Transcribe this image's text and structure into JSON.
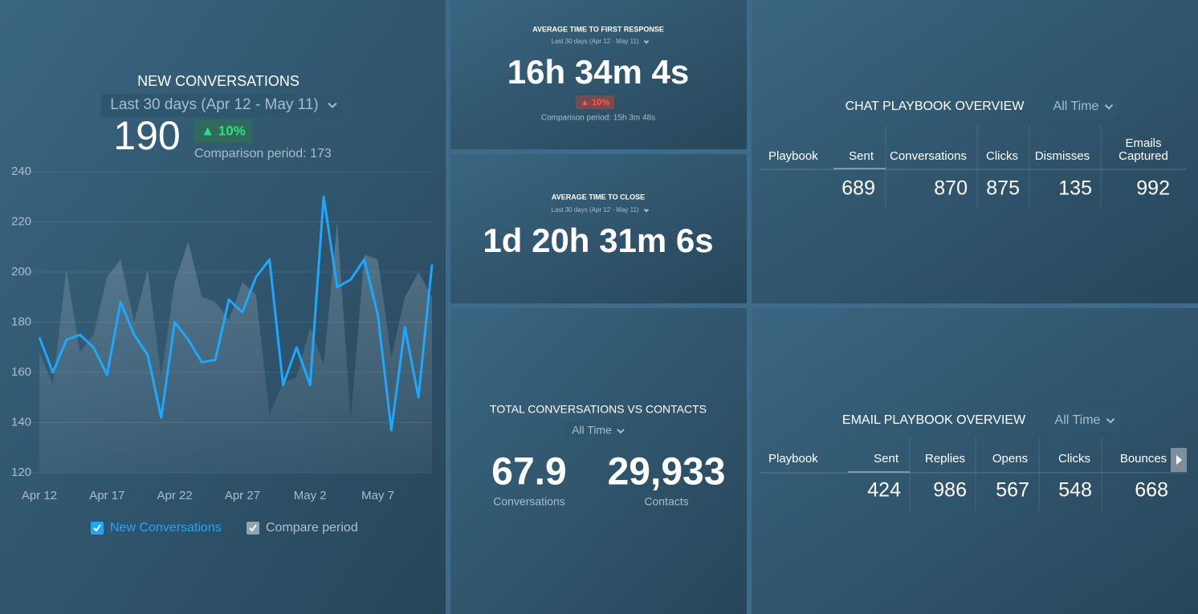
{
  "chart_data": {
    "type": "line",
    "title": "NEW CONVERSATIONS",
    "categories": [
      "Apr 12",
      null,
      null,
      null,
      null,
      "Apr 17",
      null,
      null,
      null,
      null,
      "Apr 22",
      null,
      null,
      null,
      null,
      "Apr 27",
      null,
      null,
      null,
      null,
      "May 2",
      null,
      null,
      null,
      null,
      "May 7",
      null,
      null,
      null,
      null
    ],
    "series": [
      {
        "name": "New Conversations",
        "color": "#1ea7fd",
        "style": "line",
        "values": [
          174,
          160,
          173,
          175,
          170,
          159,
          188,
          175,
          167,
          142,
          180,
          173,
          164,
          165,
          189,
          184,
          198,
          205,
          155,
          170,
          155,
          230,
          194,
          197,
          205,
          183,
          137,
          178,
          150,
          203
        ]
      },
      {
        "name": "Compare period",
        "color": "#8fa5b3",
        "style": "area",
        "values": [
          168,
          155,
          201,
          168,
          175,
          198,
          205,
          180,
          201,
          158,
          196,
          212,
          190,
          188,
          181,
          196,
          191,
          143,
          156,
          158,
          178,
          163,
          220,
          141,
          207,
          205,
          166,
          190,
          200,
          190
        ]
      }
    ],
    "ylim": [
      120,
      240
    ],
    "yticks": [
      120,
      140,
      160,
      180,
      200,
      220,
      240
    ],
    "grid": true
  },
  "new_conversations": {
    "period": "Last 30 days (Apr 12 - May 11)",
    "value": 190,
    "change": "▲ 10%",
    "comparison": "Comparison period: 173"
  },
  "first_response": {
    "title": "AVERAGE TIME TO FIRST RESPONSE",
    "period": "Last 30 days (Apr 12 - May 11)",
    "value": "16h 34m 4s",
    "change": "▲ 10%",
    "comparison": "Comparison period: 15h 3m 48s"
  },
  "time_to_close": {
    "title": "AVERAGE TIME TO CLOSE",
    "period": "Last 30 days (Apr 12 - May 11)",
    "value": "1d 20h 31m 6s"
  },
  "conversations_vs_contacts": {
    "title": "TOTAL CONVERSATIONS VS CONTACTS",
    "period": "All Time",
    "items": [
      {
        "value": 67.9,
        "label": "Conversations"
      },
      {
        "value": "29,933",
        "label": "Contacts"
      }
    ]
  },
  "chat_playbook": {
    "title": "CHAT PLAYBOOK OVERVIEW",
    "period": "All Time",
    "headers": [
      "Playbook",
      "Sent",
      "Conversations",
      "Clicks",
      "Dismisses",
      [
        "Emails",
        "Captured"
      ]
    ],
    "row": [
      689,
      870,
      875,
      135,
      992
    ]
  },
  "email_playbook": {
    "title": "EMAIL PLAYBOOK OVERVIEW",
    "period": "All Time",
    "headers": [
      "Playbook",
      "Sent",
      "Replies",
      "Opens",
      "Clicks",
      "Bounces"
    ],
    "row": [
      424,
      986,
      567,
      548,
      668
    ]
  }
}
